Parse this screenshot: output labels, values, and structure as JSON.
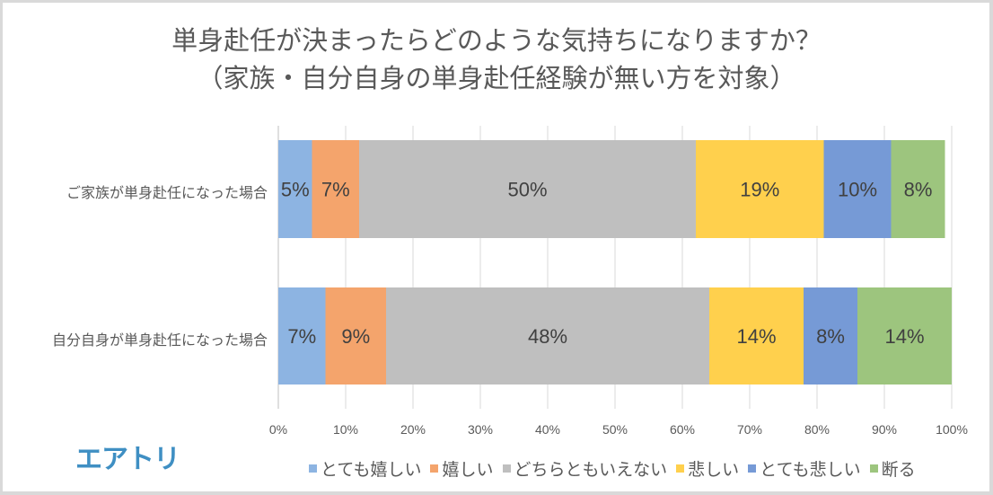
{
  "chart_data": {
    "type": "bar",
    "orientation": "horizontal",
    "stacked": "percent",
    "title": "単身赴任が決まったらどのような気持ちになりますか？",
    "subtitle": "（家族・自分自身の単身赴任経験が無い方を対象）",
    "categories": [
      "ご家族が単身赴任になった場合",
      "自分自身が単身赴任になった場合"
    ],
    "series": [
      {
        "name": "とても嬉しい",
        "color": "#8db4e2",
        "values": [
          5,
          7
        ],
        "labels": [
          "5%",
          "7%"
        ]
      },
      {
        "name": "嬉しい",
        "color": "#f4a46c",
        "values": [
          7,
          9
        ],
        "labels": [
          "7%",
          "9%"
        ]
      },
      {
        "name": "どちらともいえない",
        "color": "#bfbfbf",
        "values": [
          50,
          48
        ],
        "labels": [
          "50%",
          "48%"
        ]
      },
      {
        "name": "悲しい",
        "color": "#ffd04d",
        "values": [
          19,
          14
        ],
        "labels": [
          "19%",
          "14%"
        ]
      },
      {
        "name": "とても悲しい",
        "color": "#769ad6",
        "values": [
          10,
          8
        ],
        "labels": [
          "10%",
          "8%"
        ]
      },
      {
        "name": "断る",
        "color": "#9dc57e",
        "values": [
          8,
          14
        ],
        "labels": [
          "8%",
          "14%"
        ]
      }
    ],
    "xlim": [
      0,
      100
    ],
    "xticks": [
      "0%",
      "10%",
      "20%",
      "30%",
      "40%",
      "50%",
      "60%",
      "70%",
      "80%",
      "90%",
      "100%"
    ],
    "grid": true,
    "legend": "bottom"
  },
  "logo": "エアトリ"
}
